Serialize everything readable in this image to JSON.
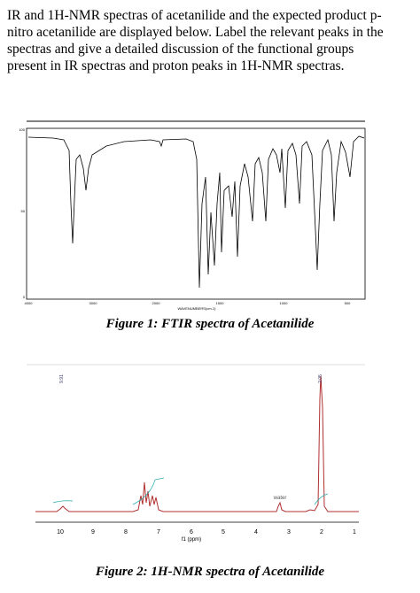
{
  "question": {
    "lines": [
      "IR and 1H-NMR spectras of acetanilide and the expected product p-",
      "nitro acetanilide are displayed below. Label the relevant peaks in the",
      "spectras and give a detailed discussion of the functional groups",
      "present in IR spectras and proton peaks in 1H-NMR spectras."
    ]
  },
  "figure1": {
    "caption": "Figure 1: FTIR spectra of Acetanilide",
    "yticks": [
      "100",
      "50",
      "0"
    ],
    "xticks": [
      "4000",
      "3000",
      "2000",
      "1500",
      "1000",
      "500"
    ],
    "x_label": "WAVENUMBERS(cm-1)"
  },
  "figure2": {
    "caption": "Figure 2: 1H-NMR spectra of Acetanilide",
    "peak_labels": [
      "9.91",
      "2.05"
    ],
    "annotation": "water",
    "xticks": [
      "10",
      "9",
      "8",
      "7",
      "6",
      "5",
      "4",
      "3",
      "2",
      "1"
    ],
    "x_label": "f1 (ppm)"
  }
}
